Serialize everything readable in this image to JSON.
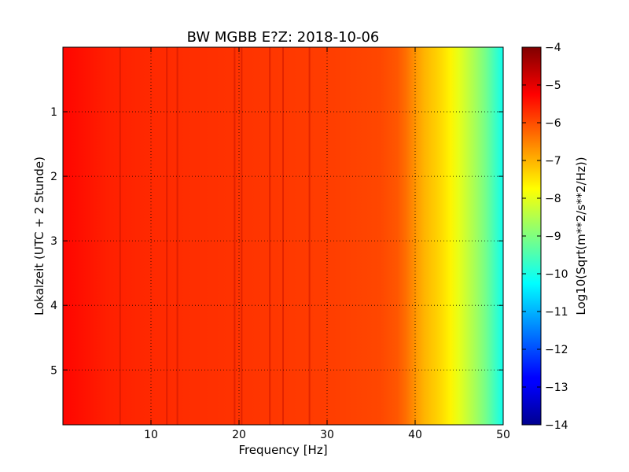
{
  "chart_data": {
    "type": "heatmap",
    "title": "BW MGBB E?Z: 2018-10-06",
    "xlabel": "Frequency [Hz]",
    "ylabel": "Lokalzeit (UTC + 2 Stunde)",
    "xlim": [
      0,
      50
    ],
    "ylim": [
      5.85,
      0
    ],
    "x_ticks": [
      10,
      20,
      30,
      40,
      50
    ],
    "y_ticks": [
      1,
      2,
      3,
      4,
      5
    ],
    "grid": true,
    "colorbar": {
      "label": "Log10(Sqrt(m**2/s**2/Hz))",
      "range": [
        -14,
        -4
      ],
      "ticks": [
        -14,
        -13,
        -12,
        -11,
        -10,
        -9,
        -8,
        -7,
        -6,
        -5,
        -4
      ],
      "colormap": "jet"
    },
    "spectral_profile": {
      "frequency_hz": [
        0,
        2,
        5,
        10,
        15,
        20,
        25,
        30,
        33,
        36,
        38,
        39,
        40,
        41,
        42,
        43,
        44,
        45,
        46,
        47,
        48,
        49,
        50
      ],
      "level": [
        -5.3,
        -5.4,
        -5.55,
        -5.65,
        -5.7,
        -5.75,
        -5.8,
        -5.85,
        -5.9,
        -5.95,
        -6.1,
        -6.35,
        -6.7,
        -7.0,
        -7.2,
        -7.4,
        -7.65,
        -8.0,
        -8.35,
        -8.7,
        -9.1,
        -9.6,
        -10.1
      ]
    },
    "line_features_hz": [
      6.5,
      11.8,
      13.0,
      19.5,
      20.3,
      23.5,
      25.0,
      28.0
    ]
  }
}
